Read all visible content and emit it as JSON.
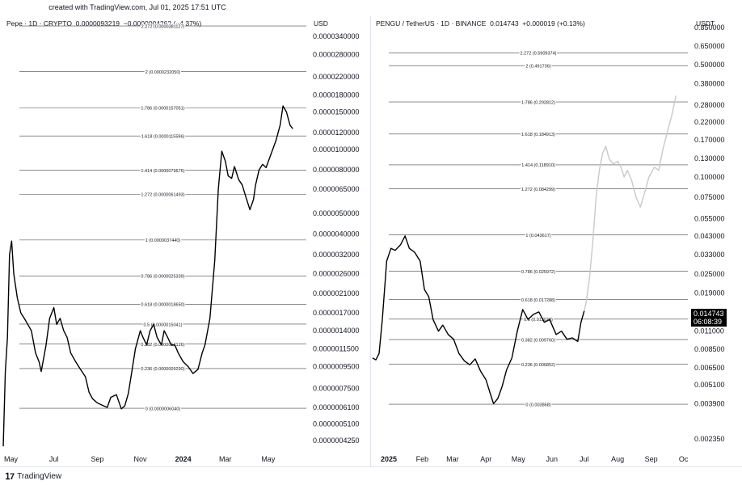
{
  "credit": "created with TradingView.com, Jul 01, 2025 17:51 UTC",
  "brand": "TradingView",
  "chart_data": [
    {
      "type": "line",
      "symbol": "Pepe · 1D · CRYPTO",
      "last_price": "0.0000093219",
      "change": "−0.0000004262 (−4.37%)",
      "currency": "USD",
      "scale": "log",
      "x_ticks": [
        "May",
        "Jul",
        "Sep",
        "Nov",
        "2024",
        "Mar",
        "May"
      ],
      "y_ticks": [
        "0.0000340000",
        "0.0000280000",
        "0.0000220000",
        "0.0000180000",
        "0.0000150000",
        "0.0000120000",
        "0.0000100000",
        "0.0000080000",
        "0.0000065000",
        "0.0000050000",
        "0.0000040000",
        "0.0000032000",
        "0.0000026000",
        "0.0000021000",
        "0.0000017000",
        "0.0000014000",
        "0.0000011500",
        "0.0000009500",
        "0.0000007500",
        "0.0000006100",
        "0.0000005100",
        "0.0000004250"
      ],
      "fib_levels": [
        {
          "label": "2.272 (0.0000381127)",
          "value": 3.81127e-05
        },
        {
          "label": "2 (0.0000232050)",
          "value": 2.3205e-05
        },
        {
          "label": "1.786 (0.0000157051)",
          "value": 1.57051e-05
        },
        {
          "label": "1.618 (0.0000115596)",
          "value": 1.15596e-05
        },
        {
          "label": "1.414 (0.0000079676)",
          "value": 7.9676e-06
        },
        {
          "label": "1.272 (0.0000061493)",
          "value": 6.1493e-06
        },
        {
          "label": "1 (0.0000037440)",
          "value": 3.744e-06
        },
        {
          "label": "0.786 (0.0000025339)",
          "value": 2.5339e-06
        },
        {
          "label": "0.618 (0.0000018650)",
          "value": 1.865e-06
        },
        {
          "label": "0.5 (0.0000015041)",
          "value": 1.5041e-06
        },
        {
          "label": "0.382 (0.0000012126)",
          "value": 1.2126e-06
        },
        {
          "label": "0.236 (0.0000009290)",
          "value": 9.29e-07
        },
        {
          "label": "0 (0.0000006040)",
          "value": 6.04e-07
        }
      ],
      "series": [
        {
          "color": "#000000",
          "x": [
            "2023-04-20",
            "2023-04-23",
            "2023-04-26",
            "2023-04-29",
            "2023-05-02",
            "2023-05-05",
            "2023-05-10",
            "2023-05-15",
            "2023-05-20",
            "2023-05-25",
            "2023-05-30",
            "2023-06-05",
            "2023-06-10",
            "2023-06-13",
            "2023-06-20",
            "2023-06-25",
            "2023-07-01",
            "2023-07-05",
            "2023-07-10",
            "2023-07-15",
            "2023-07-20",
            "2023-07-25",
            "2023-08-01",
            "2023-08-08",
            "2023-08-15",
            "2023-08-20",
            "2023-08-25",
            "2023-09-01",
            "2023-09-10",
            "2023-09-15",
            "2023-09-20",
            "2023-09-28",
            "2023-10-05",
            "2023-10-10",
            "2023-10-15",
            "2023-10-20",
            "2023-10-25",
            "2023-11-01",
            "2023-11-05",
            "2023-11-10",
            "2023-11-15",
            "2023-11-20",
            "2023-11-25",
            "2023-12-01",
            "2023-12-05",
            "2023-12-10",
            "2023-12-15",
            "2023-12-20",
            "2023-12-25",
            "2024-01-01",
            "2024-01-08",
            "2024-01-15",
            "2024-01-22",
            "2024-01-28",
            "2024-02-01",
            "2024-02-08",
            "2024-02-15",
            "2024-02-20",
            "2024-02-25",
            "2024-03-01",
            "2024-03-05",
            "2024-03-10",
            "2024-03-14",
            "2024-03-20",
            "2024-03-25",
            "2024-03-30",
            "2024-04-05",
            "2024-04-10",
            "2024-04-13",
            "2024-04-18",
            "2024-04-23",
            "2024-04-28",
            "2024-05-05",
            "2024-05-12",
            "2024-05-18",
            "2024-05-22",
            "2024-05-27",
            "2024-06-01",
            "2024-06-05"
          ],
          "y": [
            4e-07,
            9e-07,
            1.3e-06,
            3.2e-06,
            3.7e-06,
            2.6e-06,
            2e-06,
            1.7e-06,
            1.6e-06,
            1.5e-06,
            1.4e-06,
            1.1e-06,
            1e-06,
            9e-07,
            1.2e-06,
            1.6e-06,
            1.8e-06,
            1.5e-06,
            1.6e-06,
            1.4e-06,
            1.3e-06,
            1.1e-06,
            1e-06,
            9.2e-07,
            8.5e-07,
            7.2e-07,
            6.7e-07,
            6.4e-07,
            6.2e-07,
            6.1e-07,
            6.8e-07,
            7e-07,
            6e-07,
            6.2e-07,
            7.1e-07,
            9e-07,
            1.15e-06,
            1.4e-06,
            1.3e-06,
            1.2e-06,
            1.4e-06,
            1.5e-06,
            1.3e-06,
            1.2e-06,
            1.4e-06,
            1.3e-06,
            1.2e-06,
            1.2e-06,
            1.1e-06,
            1e-06,
            9.5e-07,
            8.8e-07,
            9.2e-07,
            1.1e-06,
            1.2e-06,
            1.6e-06,
            3e-06,
            6.5e-06,
            9.8e-06,
            8.8e-06,
            7.5e-06,
            7.3e-06,
            8.3e-06,
            7.2e-06,
            6.8e-06,
            6e-06,
            5.2e-06,
            5.8e-06,
            6.8e-06,
            8e-06,
            8.5e-06,
            8.2e-06,
            9.5e-06,
            1.1e-05,
            1.3e-05,
            1.6e-05,
            1.5e-05,
            1.3e-05,
            1.25e-05
          ]
        }
      ]
    },
    {
      "type": "line",
      "symbol": "PENGU / TetherUS · 1D · BINANCE",
      "last_price": "0.014743",
      "change": "+0.000019 (+0.13%)",
      "currency": "USDT",
      "scale": "log",
      "price_tag": [
        "0.014743",
        "06:08:39"
      ],
      "x_ticks": [
        "2025",
        "Feb",
        "Mar",
        "Apr",
        "May",
        "Jun",
        "Jul",
        "Aug",
        "Sep",
        "Oc"
      ],
      "y_ticks": [
        "0.850000",
        "0.650000",
        "0.500000",
        "0.380000",
        "0.280000",
        "0.220000",
        "0.170000",
        "0.130000",
        "0.100000",
        "0.075000",
        "0.055000",
        "0.043000",
        "0.033000",
        "0.025000",
        "0.019000",
        "0.014000",
        "0.011000",
        "0.008500",
        "0.006500",
        "0.005100",
        "0.003900",
        "0.002350"
      ],
      "fib_levels": [
        {
          "label": "2.272 (0.5909374)",
          "value": 0.5909374
        },
        {
          "label": "2 (0.491736)",
          "value": 0.491736
        },
        {
          "label": "1.786 (0.292812)",
          "value": 0.292812
        },
        {
          "label": "1.618 (0.184913)",
          "value": 0.184913
        },
        {
          "label": "1.414 (0.118910)",
          "value": 0.11891
        },
        {
          "label": "1.272 (0.084299)",
          "value": 0.084299
        },
        {
          "label": "1 (0.043617)",
          "value": 0.043617
        },
        {
          "label": "0.786 (0.025972)",
          "value": 0.025972
        },
        {
          "label": "0.618 (0.017288)",
          "value": 0.017288
        },
        {
          "label": "0.5 (0.013078)",
          "value": 0.013078
        },
        {
          "label": "0.382 (0.009760)",
          "value": 0.00976
        },
        {
          "label": "0.236 (0.006852)",
          "value": 0.006852
        },
        {
          "label": "0 (0.003868)",
          "value": 0.003868
        }
      ],
      "series": [
        {
          "color": "#000000",
          "x": [
            "2024-12-17",
            "2024-12-20",
            "2024-12-23",
            "2024-12-26",
            "2024-12-30",
            "2025-01-03",
            "2025-01-07",
            "2025-01-12",
            "2025-01-16",
            "2025-01-20",
            "2025-01-25",
            "2025-01-30",
            "2025-02-03",
            "2025-02-07",
            "2025-02-11",
            "2025-02-16",
            "2025-02-20",
            "2025-02-25",
            "2025-03-02",
            "2025-03-07",
            "2025-03-12",
            "2025-03-17",
            "2025-03-22",
            "2025-03-27",
            "2025-04-01",
            "2025-04-05",
            "2025-04-08",
            "2025-04-12",
            "2025-04-16",
            "2025-04-20",
            "2025-04-25",
            "2025-04-30",
            "2025-05-05",
            "2025-05-10",
            "2025-05-15",
            "2025-05-20",
            "2025-05-25",
            "2025-05-30",
            "2025-06-05",
            "2025-06-10",
            "2025-06-15",
            "2025-06-20",
            "2025-06-25",
            "2025-06-28",
            "2025-07-01"
          ],
          "y": [
            0.0075,
            0.0073,
            0.008,
            0.013,
            0.03,
            0.036,
            0.035,
            0.038,
            0.043,
            0.036,
            0.034,
            0.03,
            0.02,
            0.018,
            0.013,
            0.011,
            0.012,
            0.0105,
            0.0098,
            0.008,
            0.0072,
            0.0068,
            0.0074,
            0.0062,
            0.0055,
            0.0045,
            0.0039,
            0.0042,
            0.005,
            0.0063,
            0.0075,
            0.011,
            0.015,
            0.013,
            0.014,
            0.0145,
            0.0125,
            0.013,
            0.0105,
            0.011,
            0.0098,
            0.01,
            0.0095,
            0.0125,
            0.0147
          ]
        },
        {
          "color": "#c9c9c9",
          "x": [
            "2025-07-01",
            "2025-07-03",
            "2025-07-06",
            "2025-07-09",
            "2025-07-12",
            "2025-07-15",
            "2025-07-18",
            "2025-07-21",
            "2025-07-24",
            "2025-07-28",
            "2025-08-01",
            "2025-08-04",
            "2025-08-07",
            "2025-08-10",
            "2025-08-14",
            "2025-08-18",
            "2025-08-22",
            "2025-08-26",
            "2025-08-30",
            "2025-09-04",
            "2025-09-08",
            "2025-09-12",
            "2025-09-16",
            "2025-09-20",
            "2025-09-24"
          ],
          "y": [
            0.0147,
            0.017,
            0.024,
            0.04,
            0.075,
            0.11,
            0.14,
            0.155,
            0.13,
            0.12,
            0.125,
            0.115,
            0.1,
            0.11,
            0.095,
            0.075,
            0.065,
            0.08,
            0.1,
            0.115,
            0.11,
            0.15,
            0.19,
            0.24,
            0.32
          ]
        }
      ]
    }
  ]
}
